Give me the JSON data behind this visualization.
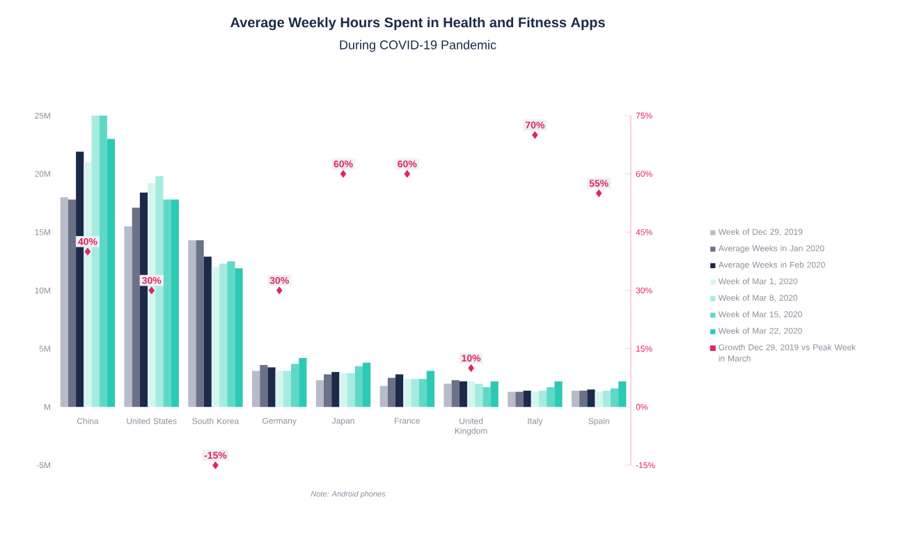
{
  "chart_data": {
    "type": "bar",
    "title": "Average Weekly Hours Spent in Health and Fitness Apps",
    "subtitle": "During COVID-19 Pandemic",
    "categories": [
      "China",
      "United States",
      "South Korea",
      "Germany",
      "Japan",
      "France",
      "United Kingdom",
      "Italy",
      "Spain"
    ],
    "series": [
      {
        "name": "Week of Dec 29, 2019",
        "color": "#b8bcc8",
        "values": [
          18.0,
          15.5,
          14.3,
          3.1,
          2.3,
          1.8,
          2.0,
          1.3,
          1.4
        ]
      },
      {
        "name": "Average Weeks in Jan 2020",
        "color": "#6b7285",
        "values": [
          17.8,
          17.1,
          14.3,
          3.6,
          2.8,
          2.5,
          2.3,
          1.3,
          1.4
        ]
      },
      {
        "name": "Average Weeks in Feb 2020",
        "color": "#1b2a4a",
        "values": [
          21.9,
          18.4,
          12.9,
          3.4,
          3.0,
          2.8,
          2.2,
          1.4,
          1.5
        ]
      },
      {
        "name": "Week of Mar 1, 2020",
        "color": "#d6f5f0",
        "values": [
          21.0,
          19.2,
          12.0,
          3.1,
          2.9,
          2.4,
          2.2,
          1.3,
          1.3
        ]
      },
      {
        "name": "Week of Mar 8, 2020",
        "color": "#a6ebe0",
        "values": [
          25.0,
          19.8,
          12.3,
          3.1,
          2.9,
          2.4,
          2.0,
          1.4,
          1.4
        ]
      },
      {
        "name": "Week of Mar 15, 2020",
        "color": "#5fd8c8",
        "values": [
          25.0,
          17.8,
          12.5,
          3.7,
          3.5,
          2.4,
          1.7,
          1.7,
          1.6
        ]
      },
      {
        "name": "Week of Mar 22, 2020",
        "color": "#2cc9b5",
        "values": [
          23.0,
          17.8,
          11.9,
          4.2,
          3.8,
          3.1,
          2.2,
          2.2,
          2.2
        ]
      },
      {
        "name": "Growth Dec 29, 2019 vs Peak Week in March",
        "type": "scatter",
        "axis": "y2",
        "marker": "diamond",
        "color": "#e0245e",
        "values": [
          40,
          30,
          -15,
          30,
          60,
          60,
          10,
          70,
          55
        ],
        "value_labels": [
          "40%",
          "30%",
          "-15%",
          "30%",
          "60%",
          "60%",
          "10%",
          "70%",
          "55%"
        ]
      }
    ],
    "ylim": [
      -5,
      25
    ],
    "yticks": [
      {
        "value": -5,
        "label": "-5M"
      },
      {
        "value": 0,
        "label": "M"
      },
      {
        "value": 5,
        "label": "5M"
      },
      {
        "value": 10,
        "label": "10M"
      },
      {
        "value": 15,
        "label": "15M"
      },
      {
        "value": 20,
        "label": "20M"
      },
      {
        "value": 25,
        "label": "25M"
      }
    ],
    "y2lim": [
      -15,
      75
    ],
    "y2ticks": [
      {
        "value": -15,
        "label": "-15%"
      },
      {
        "value": 0,
        "label": "0%"
      },
      {
        "value": 15,
        "label": "15%"
      },
      {
        "value": 30,
        "label": "30%"
      },
      {
        "value": 45,
        "label": "45%"
      },
      {
        "value": 60,
        "label": "60%"
      },
      {
        "value": 75,
        "label": "75%"
      }
    ],
    "legend": "right",
    "annotations": [
      "Note: Android phones"
    ]
  }
}
